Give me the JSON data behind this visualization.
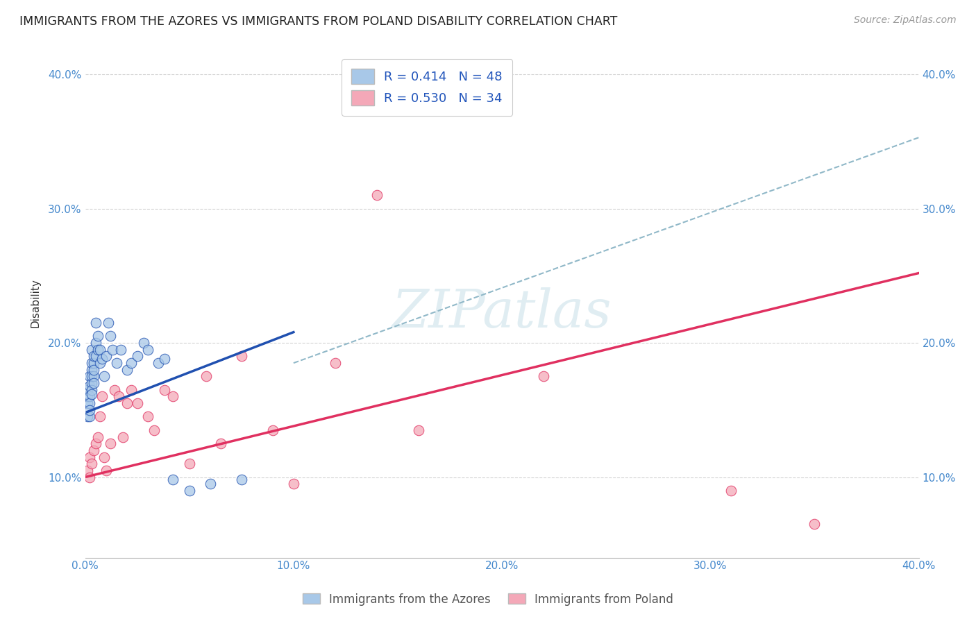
{
  "title": "IMMIGRANTS FROM THE AZORES VS IMMIGRANTS FROM POLAND DISABILITY CORRELATION CHART",
  "source": "Source: ZipAtlas.com",
  "ylabel": "Disability",
  "xlabel": "",
  "xlim": [
    0.0,
    0.4
  ],
  "ylim": [
    0.04,
    0.42
  ],
  "xticks": [
    0.0,
    0.1,
    0.2,
    0.3,
    0.4
  ],
  "yticks": [
    0.1,
    0.2,
    0.3,
    0.4
  ],
  "xtick_labels": [
    "0.0%",
    "10.0%",
    "20.0%",
    "30.0%",
    "40.0%"
  ],
  "ytick_labels": [
    "10.0%",
    "20.0%",
    "30.0%",
    "40.0%"
  ],
  "legend_r_azores": "R = 0.414",
  "legend_n_azores": "N = 48",
  "legend_r_poland": "R = 0.530",
  "legend_n_poland": "N = 34",
  "color_azores": "#a8c8e8",
  "color_poland": "#f4a8b8",
  "color_azores_line": "#2050b0",
  "color_poland_line": "#e03060",
  "color_dashed": "#90b8c8",
  "azores_x": [
    0.001,
    0.001,
    0.001,
    0.001,
    0.002,
    0.002,
    0.002,
    0.002,
    0.002,
    0.002,
    0.003,
    0.003,
    0.003,
    0.003,
    0.003,
    0.003,
    0.003,
    0.004,
    0.004,
    0.004,
    0.004,
    0.004,
    0.005,
    0.005,
    0.005,
    0.006,
    0.006,
    0.007,
    0.007,
    0.008,
    0.009,
    0.01,
    0.011,
    0.012,
    0.013,
    0.015,
    0.017,
    0.02,
    0.022,
    0.025,
    0.028,
    0.03,
    0.035,
    0.038,
    0.042,
    0.05,
    0.06,
    0.075
  ],
  "azores_y": [
    0.155,
    0.16,
    0.145,
    0.165,
    0.175,
    0.16,
    0.155,
    0.145,
    0.15,
    0.168,
    0.18,
    0.17,
    0.185,
    0.165,
    0.195,
    0.175,
    0.162,
    0.185,
    0.175,
    0.19,
    0.17,
    0.18,
    0.2,
    0.19,
    0.215,
    0.195,
    0.205,
    0.185,
    0.195,
    0.188,
    0.175,
    0.19,
    0.215,
    0.205,
    0.195,
    0.185,
    0.195,
    0.18,
    0.185,
    0.19,
    0.2,
    0.195,
    0.185,
    0.188,
    0.098,
    0.09,
    0.095,
    0.098
  ],
  "poland_x": [
    0.001,
    0.002,
    0.002,
    0.003,
    0.004,
    0.005,
    0.006,
    0.007,
    0.008,
    0.009,
    0.01,
    0.012,
    0.014,
    0.016,
    0.018,
    0.02,
    0.022,
    0.025,
    0.03,
    0.033,
    0.038,
    0.042,
    0.05,
    0.058,
    0.065,
    0.075,
    0.09,
    0.1,
    0.12,
    0.14,
    0.16,
    0.22,
    0.31,
    0.35
  ],
  "poland_y": [
    0.105,
    0.1,
    0.115,
    0.11,
    0.12,
    0.125,
    0.13,
    0.145,
    0.16,
    0.115,
    0.105,
    0.125,
    0.165,
    0.16,
    0.13,
    0.155,
    0.165,
    0.155,
    0.145,
    0.135,
    0.165,
    0.16,
    0.11,
    0.175,
    0.125,
    0.19,
    0.135,
    0.095,
    0.185,
    0.31,
    0.135,
    0.175,
    0.09,
    0.065
  ],
  "blue_line_x": [
    0.001,
    0.1
  ],
  "blue_line_y_intercept": 0.148,
  "blue_line_slope": 0.6,
  "pink_line_x": [
    0.0,
    0.4
  ],
  "pink_line_y_intercept": 0.1,
  "pink_line_slope": 0.38,
  "dashed_line_x": [
    0.1,
    0.4
  ],
  "dashed_line_y_start": 0.185,
  "dashed_line_slope": 0.56
}
